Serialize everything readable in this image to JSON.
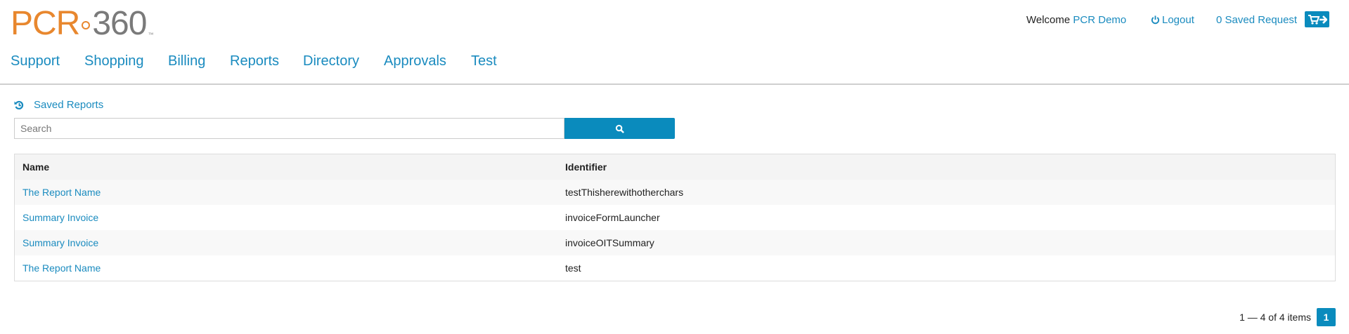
{
  "logo": {
    "text": "PCR·360",
    "tm": "TM"
  },
  "header": {
    "welcome_label": "Welcome",
    "user_name": "PCR Demo",
    "logout_label": "Logout",
    "saved_request_label": "0 Saved Request"
  },
  "nav": {
    "items": [
      "Support",
      "Shopping",
      "Billing",
      "Reports",
      "Directory",
      "Approvals",
      "Test"
    ]
  },
  "page": {
    "title": "Saved Reports"
  },
  "search": {
    "placeholder": "Search",
    "value": ""
  },
  "table": {
    "columns": [
      "Name",
      "Identifier"
    ],
    "rows": [
      {
        "name": "The Report Name",
        "identifier": "testThisherewithotherchars"
      },
      {
        "name": "Summary Invoice",
        "identifier": "invoiceFormLauncher"
      },
      {
        "name": "Summary Invoice",
        "identifier": "invoiceOITSummary"
      },
      {
        "name": "The Report Name",
        "identifier": "test"
      }
    ]
  },
  "pagination": {
    "summary": "1 — 4 of 4 items",
    "current_page": "1"
  },
  "colors": {
    "accent": "#0a8bbd",
    "link": "#1a8bbf",
    "logo_orange": "#e8872e",
    "logo_gray": "#7a7a7a"
  }
}
